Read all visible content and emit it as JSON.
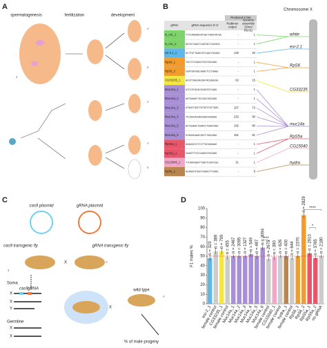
{
  "panel_a": {
    "label": "A",
    "stages": [
      "spermatogenesis",
      "fertilization",
      "development"
    ],
    "male": "♂",
    "female": "♀"
  },
  "panel_b": {
    "label": "B",
    "header": {
      "group": "Predicted X hits",
      "gRNA": "gRNA",
      "sequence": "gRNA  sequence 5'-3'",
      "redkmer": "Redkmer output",
      "genome": "Genome assembly (Dmel R6.01)"
    },
    "rows": [
      {
        "name": "w_cs1_1",
        "seq": "TTTCAAGAACATGGCTAAGTACGA",
        "redkmer": "-",
        "genome": "1",
        "color": "#7ed36a"
      },
      {
        "name": "w_cs1_2",
        "seq": "GGTATCAACCCAGTACTCACGGG",
        "redkmer": "-",
        "genome": "1",
        "color": "#7ed36a"
      },
      {
        "name": "esi-2.1_1",
        "seq": "ACTTGTTGAATGTCAACTACAGG",
        "redkmer": "126",
        "genome": "20",
        "color": "#5fb8e8"
      },
      {
        "name": "RpS6_1",
        "seq": "TACCTCCAAGCTACCGGCAGG",
        "redkmer": "-",
        "genome": "1",
        "color": "#f39c2b"
      },
      {
        "name": "RpS6_2",
        "seq": "CGATGATGGCAGACTCCTGAGG",
        "redkmer": "-",
        "genome": "1",
        "color": "#f39c2b"
      },
      {
        "name": "CG33235_1",
        "seq": "ACGTTAGCAACAGTACGAGCGG",
        "redkmer": "62",
        "genome": "15",
        "color": "#f5e642"
      },
      {
        "name": "Muc14a_1",
        "seq": "ATCCGTACACGCAGTGCCAGG",
        "redkmer": "-",
        "genome": "1",
        "color": "#a98fd6"
      },
      {
        "name": "Muc14a_2",
        "seq": "AGTAAAGCTACCACCAGCAGG",
        "redkmer": "-",
        "genome": "1",
        "color": "#a98fd6"
      },
      {
        "name": "Muc14a_3",
        "seq": "GTAGCTGGCTGTGGTCGTTAGG",
        "redkmer": "157",
        "genome": "73",
        "color": "#a98fd6"
      },
      {
        "name": "Muc14a_4",
        "seq": "TCCAGCACGAGCAGCGGAAGG",
        "redkmer": "232",
        "genome": "90",
        "color": "#a98fd6"
      },
      {
        "name": "Muc14a_5",
        "seq": "ACTGGAGCTGAACCTGAGTAGG",
        "redkmer": "192",
        "genome": "80",
        "color": "#a98fd6"
      },
      {
        "name": "Muc14a_6",
        "seq": "GTAGGCAAACGGTCTAGCAGG",
        "redkmer": "161",
        "genome": "81",
        "color": "#a98fd6"
      },
      {
        "name": "RpS5a_1",
        "seq": "GGAGGCCCTCCTTGCGAGAGG",
        "redkmer": "-",
        "genome": "1",
        "color": "#e8566c"
      },
      {
        "name": "RpS5a_2",
        "seq": "CAAGTTCCCCAAGCGTACAGG",
        "redkmer": "-",
        "genome": "1",
        "color": "#e8566c"
      },
      {
        "name": "CG15040_1",
        "seq": "TTCAACGAGTTGACTCGATCGG",
        "redkmer": "31",
        "genome": "1",
        "color": "#f2a7c8"
      },
      {
        "name": "hydra_1",
        "seq": "ACAAGTGTGGTCGAGCTTCAGG",
        "redkmer": "-",
        "genome": "9",
        "color": "#b8864e"
      }
    ],
    "chromosome": "Chromosome X",
    "genes": [
      {
        "name": "white",
        "color": "#7ed36a"
      },
      {
        "name": "esi-2.1",
        "color": "#5fb8e8"
      },
      {
        "name": "RpS6",
        "color": "#f39c2b"
      },
      {
        "name": "CG33235",
        "color": "#f5e642"
      },
      {
        "name": "muc14a",
        "color": "#a98fd6"
      },
      {
        "name": "RpS5a",
        "color": "#e8566c"
      },
      {
        "name": "CG15040",
        "color": "#f2a7c8"
      },
      {
        "name": "hydra",
        "color": "#b8864e"
      }
    ]
  },
  "panel_c": {
    "label": "C",
    "cas9_plasmid": "cas9 plasmid",
    "grna_plasmid": "gRNA plasmid",
    "cas9_fly": "cas9 transgenic fly",
    "grna_fly": "gRNA transgenic fly",
    "cross": "X",
    "soma": "Soma",
    "cas9": "cas9",
    "grna": "gRNA",
    "germline": "Germline",
    "x": "X",
    "y": "Y",
    "wild_type": "wild type",
    "result": "% of male progeny",
    "male": "♂",
    "female": "♀"
  },
  "chart_data": {
    "type": "bar",
    "label": "D",
    "y_label": "F1 males %",
    "categories": [
      "esi-2_1",
      "female control",
      "CG33235_1",
      "female control",
      "Muc14a_1",
      "Muc14a_2",
      "Muc14a_3",
      "Muc14a_4",
      "Muc14a_5",
      "Muc14a_6",
      "female control",
      "CG15040_1",
      "female control",
      "hydra_1",
      "female control",
      "RpS6_1",
      "RpS6_2",
      "RpS5a_1",
      "RpS5a_2",
      "no gRNA"
    ],
    "values": [
      48,
      55,
      55,
      49,
      50,
      50,
      50,
      52,
      50,
      59,
      47,
      49,
      50,
      50,
      48,
      50,
      93,
      53,
      48,
      50
    ],
    "errors": [
      3,
      3,
      3,
      2,
      2,
      2,
      2,
      3,
      3,
      3,
      2,
      3,
      2,
      3,
      2,
      2,
      3,
      2,
      2,
      2
    ],
    "colors": [
      "#5fb8e8",
      "#cccccc",
      "#f5e642",
      "#cccccc",
      "#a98fd6",
      "#a98fd6",
      "#a98fd6",
      "#a98fd6",
      "#a98fd6",
      "#a98fd6",
      "#cccccc",
      "#f2a7c8",
      "#cccccc",
      "#b8864e",
      "#cccccc",
      "#f39c2b",
      "#f39c2b",
      "#e8566c",
      "#e8566c",
      "#cccccc"
    ],
    "annotations": [
      "n = 323",
      "n = 389",
      "n = 799",
      "n = 455",
      "n = 2467",
      "n = 3095",
      "n = 1327",
      "n = 549",
      "n = 487",
      "n = 3094",
      "n = 2675",
      "n = 390",
      "n = 626",
      "n = 400",
      "n = 644",
      "n = 2370",
      "n = 2829",
      "n = 2910",
      "n = 3765",
      "n = 2180"
    ],
    "significance": [
      "****",
      "****",
      "*"
    ],
    "ref_line": 50,
    "ylim": [
      0,
      100
    ],
    "yticks": [
      0,
      10,
      20,
      30,
      40,
      50,
      60,
      70,
      80,
      90,
      100
    ]
  }
}
